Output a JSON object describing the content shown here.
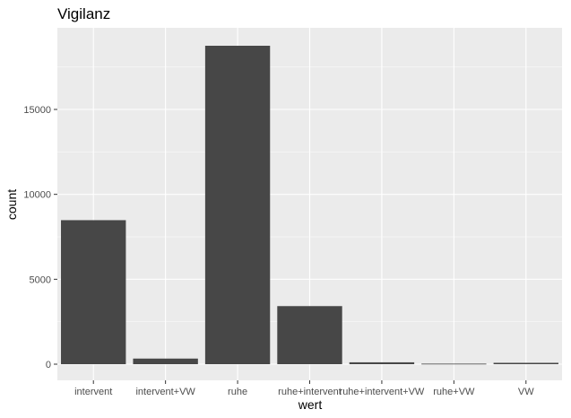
{
  "chart_data": {
    "type": "bar",
    "title": "Vigilanz",
    "xlabel": "wert",
    "ylabel": "count",
    "categories": [
      "intervent",
      "intervent+VW",
      "ruhe",
      "ruhe+intervent",
      "ruhe+intervent+VW",
      "ruhe+VW",
      "VW"
    ],
    "values": [
      8480,
      330,
      18750,
      3420,
      110,
      30,
      80
    ],
    "ylim": [
      0,
      19700
    ],
    "yticks": [
      0,
      5000,
      10000,
      15000
    ],
    "ytick_labels": [
      "0",
      "5000",
      "10000",
      "15000"
    ],
    "grid": true,
    "legend": "none",
    "colors": {
      "panel": "#ebebeb",
      "grid_major": "#ffffff",
      "bar": "#474747",
      "tick": "#333333"
    }
  }
}
